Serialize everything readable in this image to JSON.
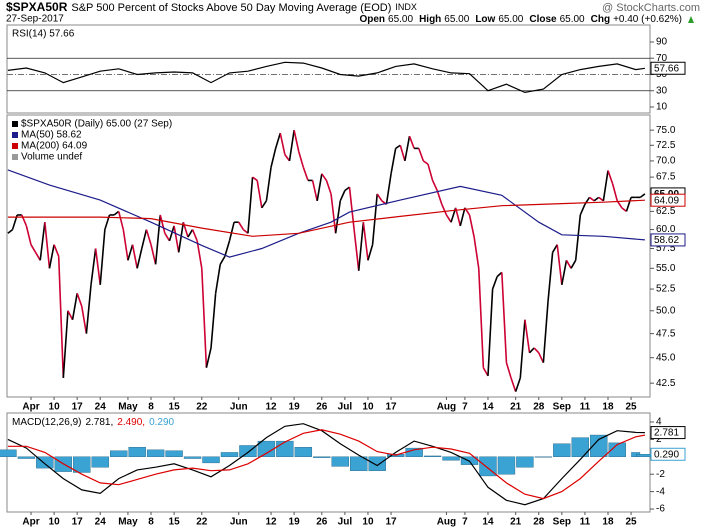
{
  "header": {
    "symbol": "$SPXA50R",
    "name": "S&P 500 Percent of Stocks Above 50 Day Moving Average (EOD)",
    "exchange": "INDX",
    "brand": "@ StockCharts.com",
    "date": "27-Sep-2017",
    "quote": [
      {
        "label": "Open",
        "value": "65.00"
      },
      {
        "label": "High",
        "value": "65.00"
      },
      {
        "label": "Low",
        "value": "65.00"
      },
      {
        "label": "Close",
        "value": "65.00"
      },
      {
        "label": "Chg",
        "value": "+0.40 (+0.62%)"
      }
    ]
  },
  "chart_data": [
    {
      "type": "line",
      "xlim": [
        -0.2,
        139.1
      ],
      "ylim": [
        2.6,
        110.9
      ],
      "yticks": [
        10,
        30,
        50,
        70,
        90
      ],
      "ref_lines": [
        {
          "value": 70,
          "style": "solid"
        },
        {
          "value": 50,
          "style": "dash"
        },
        {
          "value": 30,
          "style": "solid"
        }
      ],
      "series": [
        {
          "name": "RSI(14) 57.66",
          "color": "#000000",
          "last_label": "57.66",
          "x": [
            0,
            4,
            8,
            12,
            16,
            20,
            24,
            28,
            32,
            36,
            40,
            44,
            48,
            52,
            56,
            60,
            64,
            68,
            72,
            76,
            80,
            84,
            88,
            92,
            96,
            100,
            104,
            108,
            112,
            116,
            120,
            124,
            128,
            132,
            136,
            138
          ],
          "values": [
            55,
            58,
            52,
            40,
            47,
            54,
            57,
            50,
            52,
            53,
            52,
            40,
            52,
            54,
            60,
            65,
            64,
            58,
            50,
            48,
            52,
            60,
            63,
            57,
            52,
            51,
            30,
            38,
            28,
            32,
            50,
            56,
            60,
            63,
            56,
            57.66
          ]
        }
      ]
    },
    {
      "type": "line",
      "log": true,
      "xlim": [
        -0.2,
        139.1
      ],
      "ylim": [
        41.2,
        77.6
      ],
      "yticks": [
        {
          "value": 75,
          "label": "75.0"
        },
        {
          "value": 72.5,
          "label": "72.5"
        },
        {
          "value": 70,
          "label": "70.0"
        },
        {
          "value": 67.5,
          "label": "67.5"
        },
        {
          "value": 65,
          "label": "65.0"
        },
        {
          "value": 62.5,
          "label": "62.5"
        },
        {
          "value": 60,
          "label": "60.0"
        },
        {
          "value": 57.5,
          "label": "57.5"
        },
        {
          "value": 55,
          "label": "55.0"
        },
        {
          "value": 52.5,
          "label": "52.5"
        },
        {
          "value": 50,
          "label": "50.0"
        },
        {
          "value": 47.5,
          "label": "47.5"
        },
        {
          "value": 45,
          "label": "45.0"
        },
        {
          "value": 42.5,
          "label": "42.5"
        }
      ],
      "xticks": [
        {
          "value": 5,
          "label": "Apr"
        },
        {
          "value": 10,
          "label": "10"
        },
        {
          "value": 15,
          "label": "17"
        },
        {
          "value": 20,
          "label": "24"
        },
        {
          "value": 26,
          "label": "May"
        },
        {
          "value": 31,
          "label": "8"
        },
        {
          "value": 36,
          "label": "15"
        },
        {
          "value": 42,
          "label": "22"
        },
        {
          "value": 50,
          "label": "Jun"
        },
        {
          "value": 57,
          "label": "12"
        },
        {
          "value": 62,
          "label": "19"
        },
        {
          "value": 68,
          "label": "26"
        },
        {
          "value": 73,
          "label": "Jul"
        },
        {
          "value": 78,
          "label": "10"
        },
        {
          "value": 83,
          "label": "17"
        },
        {
          "value": 95,
          "label": "Aug"
        },
        {
          "value": 99,
          "label": "7"
        },
        {
          "value": 104,
          "label": "14"
        },
        {
          "value": 110,
          "label": "21"
        },
        {
          "value": 115,
          "label": "28"
        },
        {
          "value": 120,
          "label": "Sep"
        },
        {
          "value": 125,
          "label": "11"
        },
        {
          "value": 130,
          "label": "18"
        },
        {
          "value": 135,
          "label": "25"
        }
      ],
      "series": [
        {
          "name": "$SPXA50R (Daily) 65.00 (27 Sep)",
          "color": "#000000",
          "up_color": "#000000",
          "down_color": "#cc0033",
          "last_label": "65.00",
          "values": [
            59.5,
            60,
            62,
            62,
            60.5,
            58,
            57,
            56,
            61,
            55,
            58,
            56.5,
            43,
            50,
            49,
            52,
            50.5,
            47.5,
            53,
            57.5,
            53,
            60,
            62,
            62,
            62.5,
            60,
            56,
            58,
            55,
            57.5,
            60,
            58,
            55.5,
            62,
            59.5,
            58.5,
            60.5,
            57,
            61,
            59,
            60,
            58.5,
            55,
            44,
            46,
            52,
            55.5,
            56.5,
            58.5,
            61,
            61,
            60,
            59.5,
            67.5,
            67,
            63,
            64,
            69,
            72,
            74.5,
            71,
            70,
            75,
            71.5,
            69,
            67,
            67,
            64,
            68,
            67,
            65,
            59.5,
            64,
            65.5,
            66,
            60,
            54.7,
            61,
            56,
            58,
            65,
            64,
            63.5,
            68,
            72,
            72.5,
            70,
            74,
            72,
            72,
            70,
            69.5,
            67,
            65.5,
            63.5,
            62,
            61,
            63,
            60.5,
            63,
            62,
            59,
            55,
            44,
            43.2,
            52.5,
            54,
            54.5,
            44.5,
            43,
            41.7,
            43,
            49,
            45.5,
            46,
            45.5,
            44.5,
            51,
            57,
            58,
            53,
            56,
            55,
            56,
            62,
            63.5,
            64.5,
            64,
            64.5,
            64,
            68.5,
            66.5,
            64,
            63,
            62.5,
            64.5,
            64.5,
            64.5,
            65
          ]
        },
        {
          "name": "MA(50) 58.62",
          "color": "#1c1c8a",
          "last_label": "58.62",
          "x": [
            0,
            9,
            20,
            31,
            42,
            48,
            55,
            63,
            70,
            74,
            85,
            98,
            107,
            115,
            120,
            129,
            138
          ],
          "values": [
            68.6,
            66.3,
            64.1,
            61.0,
            57.9,
            56.4,
            57.5,
            59.5,
            61.0,
            62.4,
            64.1,
            66.1,
            64.8,
            61.0,
            59.3,
            59.1,
            58.62
          ]
        },
        {
          "name": "MA(200) 64.09",
          "color": "#cc0000",
          "last_label": "64.09",
          "x": [
            0,
            20,
            31,
            42,
            53,
            63,
            74,
            85,
            96,
            107,
            120,
            129,
            138
          ],
          "values": [
            61.7,
            61.7,
            61.5,
            60.2,
            59.1,
            59.5,
            61.0,
            61.8,
            62.6,
            63.3,
            63.6,
            63.8,
            64.09
          ]
        },
        {
          "name": "Volume undef",
          "color": "#999999"
        }
      ]
    },
    {
      "type": "macd",
      "title": "MACD(12,26,9)",
      "xlim": [
        -0.2,
        139.1
      ],
      "ylim": [
        -6.34,
        5.03
      ],
      "yticks": [
        4,
        2,
        0,
        -2,
        -4,
        -6
      ],
      "xticks": [
        {
          "value": 5,
          "label": "Apr"
        },
        {
          "value": 10,
          "label": "10"
        },
        {
          "value": 15,
          "label": "17"
        },
        {
          "value": 20,
          "label": "24"
        },
        {
          "value": 26,
          "label": "May"
        },
        {
          "value": 31,
          "label": "8"
        },
        {
          "value": 36,
          "label": "15"
        },
        {
          "value": 42,
          "label": "22"
        },
        {
          "value": 50,
          "label": "Jun"
        },
        {
          "value": 57,
          "label": "12"
        },
        {
          "value": 62,
          "label": "19"
        },
        {
          "value": 68,
          "label": "26"
        },
        {
          "value": 73,
          "label": "Jul"
        },
        {
          "value": 78,
          "label": "10"
        },
        {
          "value": 83,
          "label": "17"
        },
        {
          "value": 95,
          "label": "Aug"
        },
        {
          "value": 99,
          "label": "7"
        },
        {
          "value": 104,
          "label": "14"
        },
        {
          "value": 110,
          "label": "21"
        },
        {
          "value": 115,
          "label": "28"
        },
        {
          "value": 120,
          "label": "Sep"
        },
        {
          "value": 125,
          "label": "11"
        },
        {
          "value": 130,
          "label": "18"
        },
        {
          "value": 135,
          "label": "25"
        }
      ],
      "series": [
        {
          "kind": "line",
          "legend_label": "2.781,",
          "color": "#000000",
          "last_label": "2.781",
          "x": [
            0,
            4,
            8,
            12,
            16,
            20,
            24,
            28,
            32,
            36,
            40,
            44,
            48,
            52,
            56,
            60,
            64,
            68,
            72,
            76,
            80,
            84,
            88,
            92,
            96,
            100,
            104,
            108,
            112,
            116,
            120,
            124,
            128,
            132,
            136,
            138
          ],
          "values": [
            2.0,
            1.0,
            -0.8,
            -2.5,
            -3.8,
            -4.2,
            -2.5,
            -1.5,
            -1.2,
            -0.8,
            -1.5,
            -2.3,
            -1.0,
            0.5,
            2.2,
            3.5,
            3.8,
            3.0,
            1.5,
            0.2,
            -1.0,
            0.5,
            1.8,
            1.2,
            0.5,
            -0.5,
            -3.5,
            -5.0,
            -5.5,
            -4.8,
            -2.5,
            -0.3,
            2.0,
            3.0,
            2.8,
            2.781
          ]
        },
        {
          "kind": "line",
          "legend_label": "2.490,",
          "color": "#dd0000",
          "x": [
            0,
            4,
            8,
            12,
            16,
            20,
            24,
            28,
            32,
            36,
            40,
            44,
            48,
            52,
            56,
            60,
            64,
            68,
            72,
            76,
            80,
            84,
            88,
            92,
            96,
            100,
            104,
            108,
            112,
            116,
            120,
            124,
            128,
            132,
            136,
            138
          ],
          "values": [
            1.2,
            1.2,
            0.5,
            -0.8,
            -2.0,
            -3.0,
            -3.2,
            -2.6,
            -2.0,
            -1.5,
            -1.3,
            -1.6,
            -1.5,
            -0.8,
            0.4,
            1.7,
            2.7,
            3.1,
            2.6,
            1.8,
            0.6,
            0.2,
            0.8,
            1.1,
            0.9,
            0.4,
            -1.3,
            -3.0,
            -4.3,
            -4.8,
            -4.0,
            -2.5,
            -0.5,
            1.4,
            2.3,
            2.49
          ]
        },
        {
          "kind": "bar",
          "legend_label": "0.290",
          "color": "#3ba3d3",
          "last_label": "0.290",
          "x": [
            0,
            4,
            8,
            12,
            16,
            20,
            24,
            28,
            32,
            36,
            40,
            44,
            48,
            52,
            56,
            60,
            64,
            68,
            72,
            76,
            80,
            84,
            88,
            92,
            96,
            100,
            104,
            108,
            112,
            116,
            120,
            124,
            128,
            132,
            136,
            138
          ],
          "values": [
            0.8,
            -0.2,
            -1.3,
            -1.7,
            -1.8,
            -1.2,
            0.7,
            1.1,
            0.8,
            0.7,
            -0.2,
            -0.7,
            0.5,
            1.3,
            1.8,
            1.8,
            1.1,
            -0.1,
            -1.1,
            -1.6,
            -1.6,
            0.3,
            1.0,
            0.1,
            -0.4,
            -0.9,
            -2.2,
            -2.0,
            -1.2,
            0.0,
            1.5,
            2.2,
            2.5,
            1.6,
            0.5,
            0.29
          ]
        }
      ]
    }
  ]
}
